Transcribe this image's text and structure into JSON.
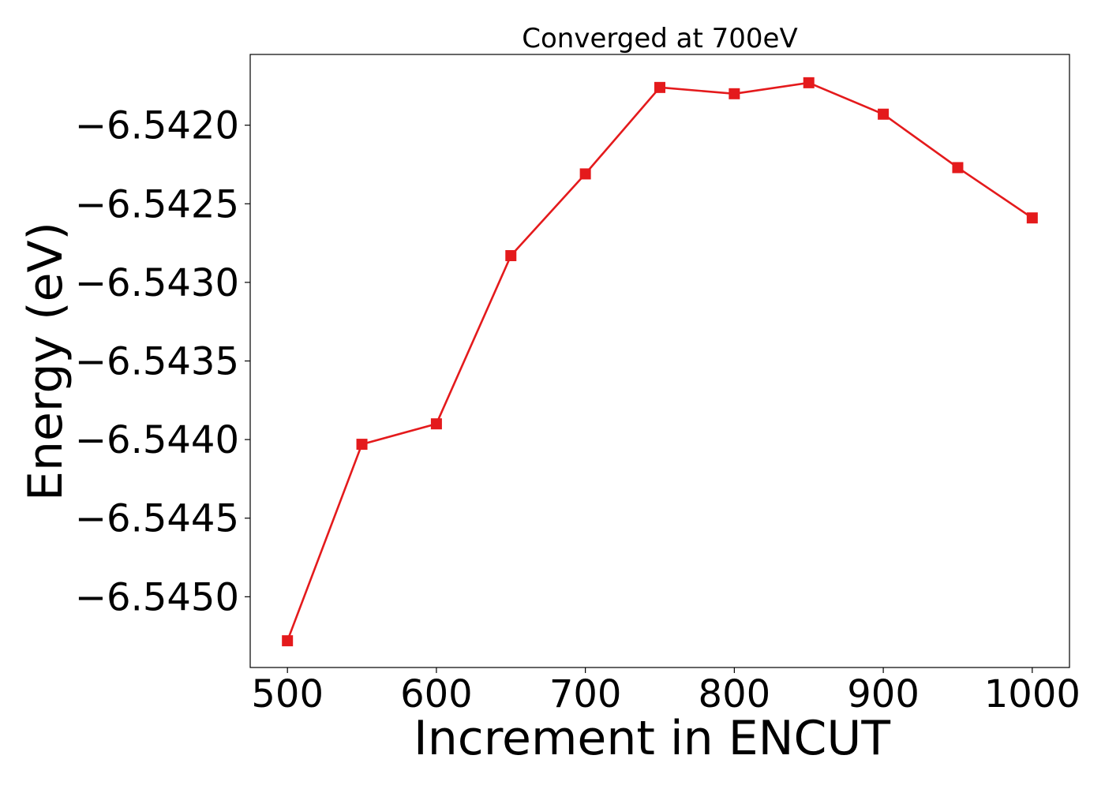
{
  "chart_data": {
    "type": "line",
    "title": "Converged at 700eV",
    "xlabel": "Increment in ENCUT",
    "ylabel": "Energy (eV)",
    "x": [
      500,
      550,
      600,
      650,
      700,
      750,
      800,
      850,
      900,
      950,
      1000
    ],
    "series": [
      {
        "values": [
          -6.54528,
          -6.54403,
          -6.5439,
          -6.54283,
          -6.54231,
          -6.54176,
          -6.5418,
          -6.54173,
          -6.54193,
          -6.54227,
          -6.54259
        ],
        "color": "#e41a1c",
        "marker": "square"
      }
    ],
    "xlim": [
      475,
      1025
    ],
    "ylim": [
      -6.54545,
      -6.54155
    ],
    "xticks": [
      500,
      600,
      700,
      800,
      900,
      1000
    ],
    "xtick_labels": [
      "500",
      "600",
      "700",
      "800",
      "900",
      "1000"
    ],
    "yticks": [
      -6.542,
      -6.5425,
      -6.543,
      -6.5435,
      -6.544,
      -6.5445,
      -6.545
    ],
    "ytick_labels": [
      "−6.5420",
      "−6.5425",
      "−6.5430",
      "−6.5435",
      "−6.5440",
      "−6.5445",
      "−6.5450"
    ],
    "grid": false,
    "legend": false
  }
}
